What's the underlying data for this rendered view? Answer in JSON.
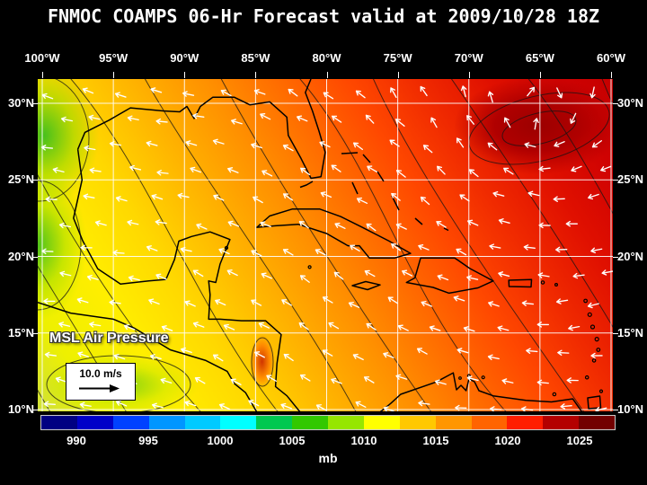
{
  "title": "FNMOC COAMPS 06-Hr Forecast valid at 2009/10/28 18Z",
  "map": {
    "lon_labels": [
      "100°W",
      "95°W",
      "90°W",
      "85°W",
      "80°W",
      "75°W",
      "70°W",
      "65°W",
      "60°W"
    ],
    "lat_labels": [
      "30°N",
      "25°N",
      "20°N",
      "15°N",
      "10°N"
    ],
    "field_label": "MSL Air Pressure",
    "wind_reference": "10.0 m/s"
  },
  "colorbar": {
    "unit": "mb",
    "tick_labels": [
      "990",
      "995",
      "1000",
      "1005",
      "1010",
      "1015",
      "1020",
      "1025"
    ],
    "segment_colors": [
      "#000082",
      "#0000c8",
      "#0041ff",
      "#0096ff",
      "#00caff",
      "#00ffff",
      "#00c850",
      "#32c800",
      "#96e600",
      "#ffff00",
      "#ffc800",
      "#ff9600",
      "#ff6400",
      "#ff1e00",
      "#b40000",
      "#730000"
    ]
  },
  "colors": {
    "background": "#000000",
    "labels": "#ffffff",
    "coastlines": "#000000",
    "wind_vectors": "#ffffff",
    "high_center": "#9c0000"
  },
  "chart_data": {
    "type": "heatmap",
    "title": "FNMOC COAMPS 06-Hr Forecast valid at 2009/10/28 18Z",
    "field": "MSL Air Pressure",
    "unit": "mb",
    "x_axis": {
      "label": "longitude",
      "ticks": [
        "100°W",
        "95°W",
        "90°W",
        "85°W",
        "80°W",
        "75°W",
        "70°W",
        "65°W",
        "60°W"
      ]
    },
    "y_axis": {
      "label": "latitude",
      "ticks": [
        "30°N",
        "25°N",
        "20°N",
        "15°N",
        "10°N"
      ]
    },
    "colorbar_ticks_mb": [
      990,
      995,
      1000,
      1005,
      1010,
      1015,
      1020,
      1025
    ],
    "wind_reference_ms": 10.0,
    "overlays": [
      "wind vector arrows",
      "isobar contours",
      "coastlines",
      "5-degree lat/lon grid"
    ],
    "pattern": "Pressure rises from about 1006-1010 mb (green/yellow) over the eastern Pacific, Central America and western Gulf of Mexico to a 1024+ mb high (dark red) over the western Atlantic near 65W 28N; easterly trade-wind vectors cover the Caribbean basin."
  }
}
